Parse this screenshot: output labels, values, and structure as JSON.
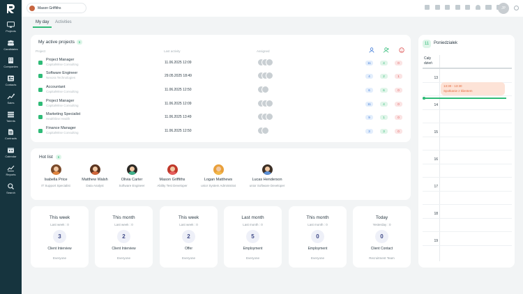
{
  "sidebar": {
    "items": [
      {
        "label": "Projects",
        "icon": "monitor-icon"
      },
      {
        "label": "Candidates",
        "icon": "users-icon"
      },
      {
        "label": "Companies",
        "icon": "building-icon"
      },
      {
        "label": "Contacts",
        "icon": "contact-card-icon"
      },
      {
        "label": "Sales",
        "icon": "sales-chart-icon"
      },
      {
        "label": "Talents",
        "icon": "talents-list-icon"
      },
      {
        "label": "Contracts",
        "icon": "contract-icon"
      },
      {
        "label": "Calendar",
        "icon": "calendar-icon"
      },
      {
        "label": "Reports",
        "icon": "reports-chart-icon"
      },
      {
        "label": "Search",
        "icon": "search-icon"
      }
    ]
  },
  "topbar": {
    "user_name": "Mason Griffiths",
    "avatar_initials": "JP"
  },
  "tabs": [
    {
      "label": "My day",
      "active": true
    },
    {
      "label": "Activities",
      "active": false
    }
  ],
  "active_projects": {
    "title": "My active projects",
    "count": "6",
    "columns": {
      "project": "Project",
      "last_activity": "Last activity",
      "assigned": "Assigned"
    },
    "rows": [
      {
        "title": "Project Manager",
        "company": "CapitalWise Consulting",
        "date": "11.06.2025 12:09",
        "blue": "11",
        "green": "4",
        "red": "0"
      },
      {
        "title": "Software Engineer",
        "company": "Nexora Technologies",
        "date": "29.05.2025 18:49",
        "blue": "4",
        "green": "2",
        "red": "1"
      },
      {
        "title": "Accountant",
        "company": "CapitalWise Consulting",
        "date": "11.06.2025 12:50",
        "blue": "6",
        "green": "6",
        "red": "0"
      },
      {
        "title": "Project Manager",
        "company": "CapitalWise Consulting",
        "date": "11.06.2025 12:09",
        "blue": "11",
        "green": "4",
        "red": "0"
      },
      {
        "title": "Marketing Specialist",
        "company": "Healthline Health",
        "date": "11.06.2025 13:49",
        "blue": "9",
        "green": "1",
        "red": "0"
      },
      {
        "title": "Finance Manager",
        "company": "CapitalWise Consulting",
        "date": "11.06.2025 12:50",
        "blue": "3",
        "green": "3",
        "red": "0"
      }
    ]
  },
  "hot_list": {
    "title": "Hot list",
    "count": "6",
    "people": [
      {
        "name": "Isabella Price",
        "role": "IT Support Specialist",
        "hair": "#7a4a2a",
        "shirt": "#e0843f"
      },
      {
        "name": "Matthew Walsh",
        "role": "Data Analyst",
        "hair": "#5b3420",
        "shirt": "#d2683c"
      },
      {
        "name": "Olivia Carter",
        "role": "Software Engineer",
        "hair": "#2c2a26",
        "shirt": "#3fb08a"
      },
      {
        "name": "Mason Griffiths",
        "role": "Ability Test Developer",
        "hair": "#c0392b",
        "shirt": "#e55d5d"
      },
      {
        "name": "Logan Matthews",
        "role": "unior System Administrat",
        "hair": "#e9a03b",
        "shirt": "#f1b84a"
      },
      {
        "name": "Lucas Henderson",
        "role": "unior Software Developer",
        "hair": "#3d3026",
        "shirt": "#5a8fd6"
      }
    ]
  },
  "stats": [
    {
      "period": "This week",
      "compare": "Last week : 0",
      "value": "3",
      "kind": "Client Interview",
      "scope": "Everyone"
    },
    {
      "period": "This month",
      "compare": "Last week : 0",
      "value": "2",
      "kind": "Client Interview",
      "scope": "Everyone"
    },
    {
      "period": "This week",
      "compare": "Last week : 0",
      "value": "2",
      "kind": "Offer",
      "scope": "Everyone"
    },
    {
      "period": "Last month",
      "compare": "Last month : 0",
      "value": "5",
      "kind": "Employment",
      "scope": "Everyone"
    },
    {
      "period": "This month",
      "compare": "Last month : 0",
      "value": "0",
      "kind": "Employment",
      "scope": "Everyone"
    },
    {
      "period": "Today",
      "compare": "Yesterday : 0",
      "value": "0",
      "kind": "Client Contact",
      "scope": "Recruitment Team"
    }
  ],
  "calendar": {
    "day_number": "11",
    "day_name": "Poniedziałek",
    "all_day_label_1": "Cały",
    "all_day_label_2": "dzień",
    "hours": [
      "13",
      "14",
      "15",
      "16",
      "17",
      "18",
      "19"
    ],
    "event": {
      "time": "13:30 - 13:30",
      "title": "Spotkanie z klientem"
    }
  },
  "colors": {
    "sidebar": "#16343e",
    "accent_green": "#2fbb77",
    "badge_blue": "#3e7ad8",
    "badge_red": "#df5a5a",
    "event_bg": "#fde3d7"
  }
}
